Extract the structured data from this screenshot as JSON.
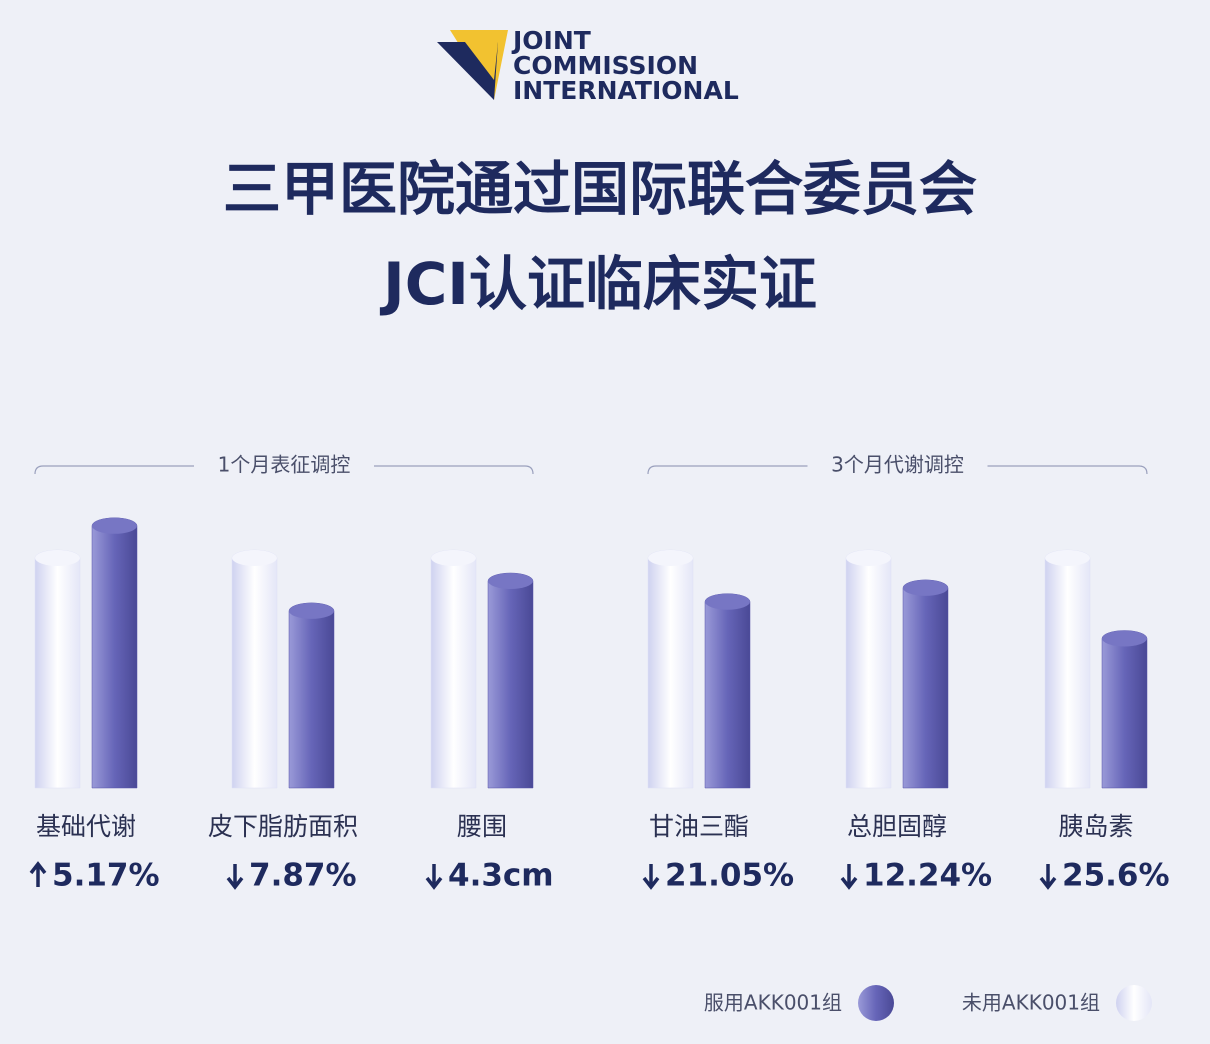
{
  "chart_data": {
    "type": "bar",
    "logo": [
      "JOINT",
      "COMMISSION",
      "INTERNATIONAL"
    ],
    "title": [
      "三甲医院通过国际联合委员会",
      "JCI认证临床实证"
    ],
    "group_labels": [
      "1个月表征调控",
      "3个月代谢调控"
    ],
    "categories": [
      "基础代谢",
      "皮下脂肪面积",
      "腰围",
      "甘油三酯",
      "总胆固醇",
      "胰岛素"
    ],
    "change_directions": [
      "up",
      "down",
      "down",
      "down",
      "down",
      "down"
    ],
    "change_labels": [
      "5.17%",
      "7.87%",
      "4.3cm",
      "21.05%",
      "12.24%",
      "25.6%"
    ],
    "series": [
      {
        "name": "服用AKK001组",
        "color": "#5453a8",
        "values": [
          114,
          77,
          90,
          81,
          87,
          65
        ]
      },
      {
        "name": "未用AKK001组",
        "color": "#dfe1f6",
        "values": [
          100,
          100,
          100,
          100,
          100,
          100
        ]
      }
    ],
    "ylim": [
      0,
      120
    ]
  }
}
